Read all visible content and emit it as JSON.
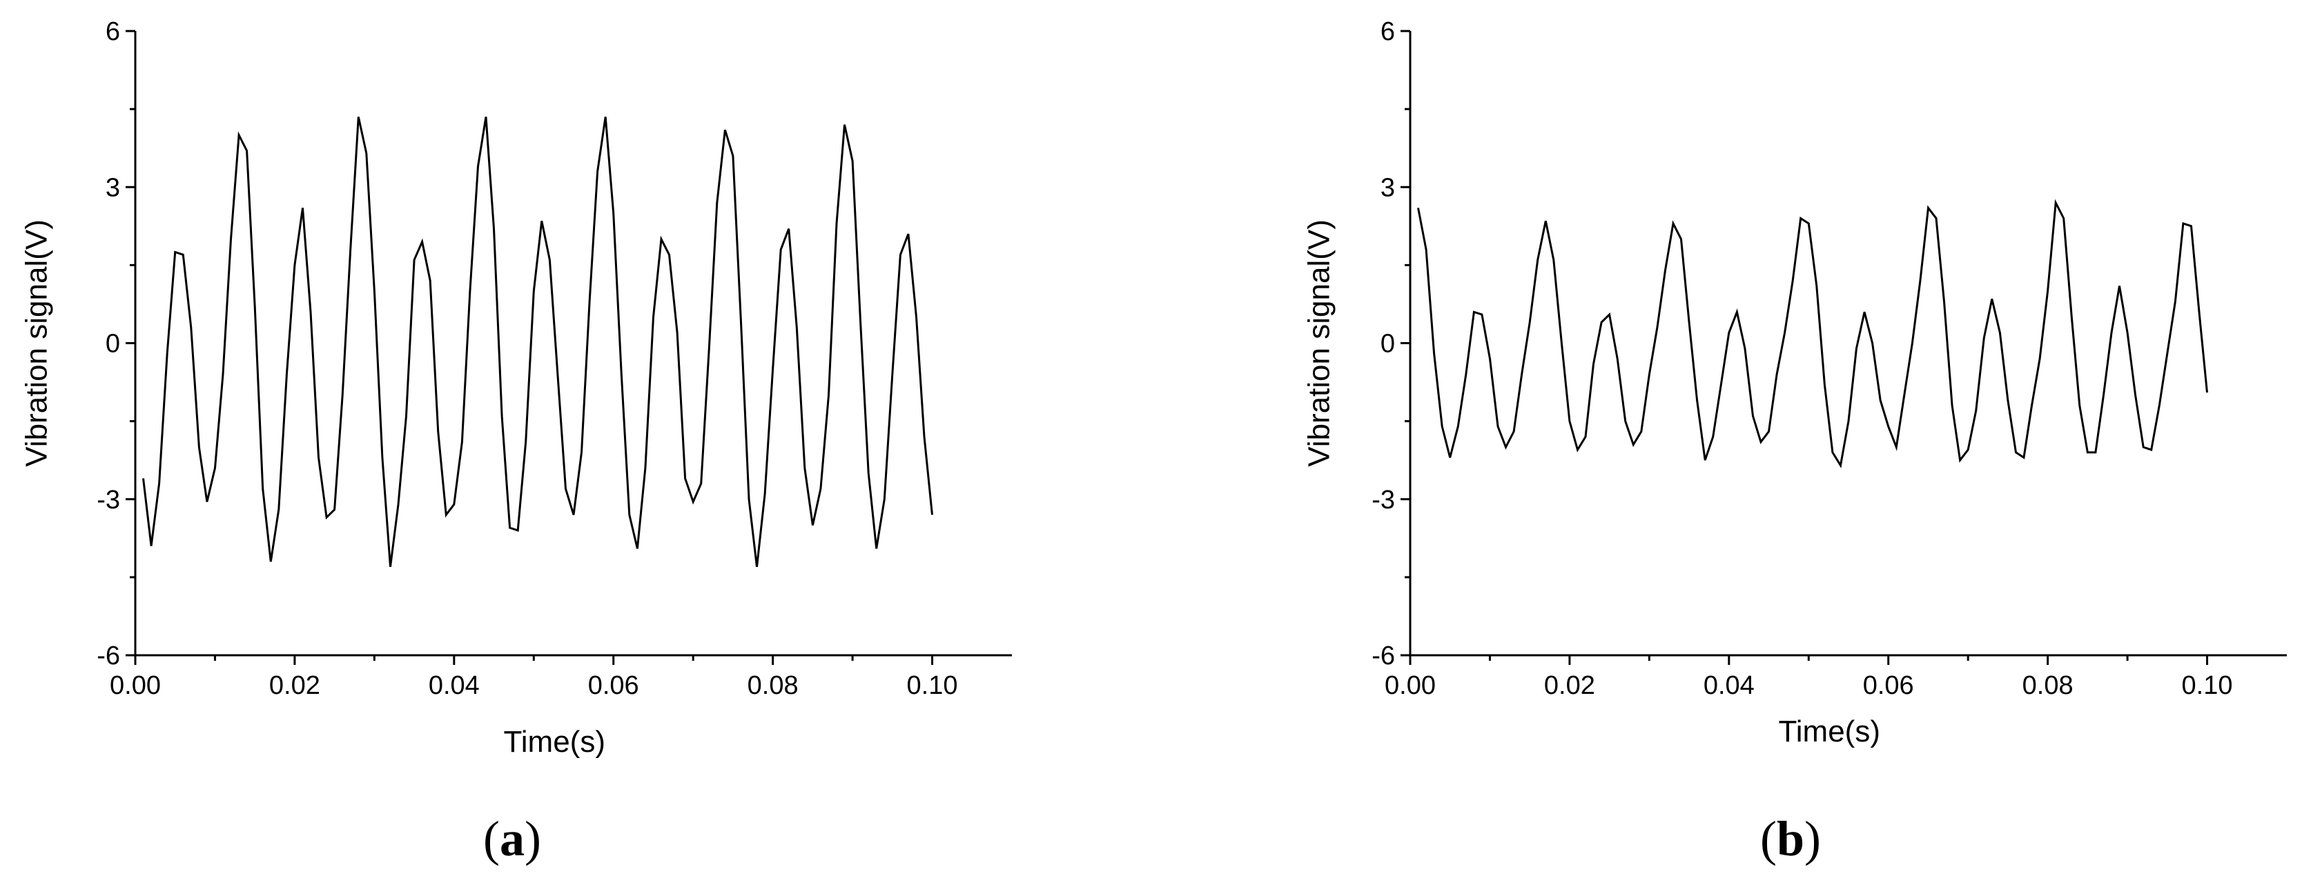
{
  "chart_data": [
    {
      "type": "line",
      "panel_label": "a",
      "title": "",
      "xlabel": "Time(s)",
      "ylabel": "Vibration signal(V)",
      "xlim": [
        0,
        0.11
      ],
      "ylim": [
        -6,
        6
      ],
      "xticks": [
        "0.00",
        "0.02",
        "0.04",
        "0.06",
        "0.08",
        "0.10"
      ],
      "yticks": [
        "6",
        "3",
        "0",
        "-3",
        "-6"
      ],
      "grid": false,
      "legend": "none",
      "line_color": "#000000",
      "series": [
        {
          "x": [
            0.001,
            0.002,
            0.003,
            0.004,
            0.005,
            0.006,
            0.007,
            0.008,
            0.009,
            0.01,
            0.011,
            0.012,
            0.013,
            0.014,
            0.015,
            0.016,
            0.017,
            0.018,
            0.019,
            0.02,
            0.021,
            0.022,
            0.023,
            0.024,
            0.025,
            0.026,
            0.027,
            0.028,
            0.029,
            0.03,
            0.031,
            0.032,
            0.033,
            0.034,
            0.035,
            0.036,
            0.037,
            0.038,
            0.039,
            0.04,
            0.041,
            0.042,
            0.043,
            0.044,
            0.045,
            0.046,
            0.047,
            0.048,
            0.049,
            0.05,
            0.051,
            0.052,
            0.053,
            0.054,
            0.055,
            0.056,
            0.057,
            0.058,
            0.059,
            0.06,
            0.061,
            0.062,
            0.063,
            0.064,
            0.065,
            0.066,
            0.067,
            0.068,
            0.069,
            0.07,
            0.071,
            0.072,
            0.073,
            0.074,
            0.075,
            0.076,
            0.077,
            0.078,
            0.079,
            0.08,
            0.081,
            0.082,
            0.083,
            0.084,
            0.085,
            0.086,
            0.087,
            0.088,
            0.089,
            0.09,
            0.091,
            0.092,
            0.093,
            0.094,
            0.095,
            0.096,
            0.097,
            0.098,
            0.099,
            0.1
          ],
          "values": [
            -2.6,
            -3.9,
            -2.7,
            -0.2,
            1.75,
            1.7,
            0.3,
            -2.0,
            -3.05,
            -2.4,
            -0.6,
            2.0,
            4.0,
            3.7,
            0.7,
            -2.8,
            -4.2,
            -3.2,
            -0.6,
            1.5,
            2.6,
            0.6,
            -2.2,
            -3.35,
            -3.2,
            -1.0,
            1.8,
            4.35,
            3.65,
            1.0,
            -2.2,
            -4.3,
            -3.1,
            -1.4,
            1.6,
            1.95,
            1.2,
            -1.7,
            -3.3,
            -3.1,
            -1.9,
            1.0,
            3.4,
            4.35,
            2.2,
            -1.4,
            -3.55,
            -3.6,
            -1.9,
            1.0,
            2.35,
            1.6,
            -0.6,
            -2.8,
            -3.3,
            -2.1,
            0.8,
            3.3,
            4.35,
            2.5,
            -0.6,
            -3.3,
            -3.95,
            -2.4,
            0.5,
            2.0,
            1.7,
            0.2,
            -2.6,
            -3.05,
            -2.7,
            -0.1,
            2.7,
            4.1,
            3.6,
            0.4,
            -3.0,
            -4.3,
            -2.9,
            -0.5,
            1.8,
            2.2,
            0.3,
            -2.4,
            -3.5,
            -2.8,
            -1.0,
            2.3,
            4.2,
            3.5,
            0.4,
            -2.5,
            -3.95,
            -3.0,
            -0.6,
            1.7,
            2.1,
            0.5,
            -1.8,
            -3.3
          ]
        }
      ]
    },
    {
      "type": "line",
      "panel_label": "b",
      "title": "",
      "xlabel": "Time(s)",
      "ylabel": "Vibration signal(V)",
      "xlim": [
        0,
        0.11
      ],
      "ylim": [
        -6,
        6
      ],
      "xticks": [
        "0.00",
        "0.02",
        "0.04",
        "0.06",
        "0.08",
        "0.10"
      ],
      "yticks": [
        "6",
        "3",
        "0",
        "-3",
        "-6"
      ],
      "grid": false,
      "legend": "none",
      "line_color": "#000000",
      "series": [
        {
          "x": [
            0.001,
            0.002,
            0.003,
            0.004,
            0.005,
            0.006,
            0.007,
            0.008,
            0.009,
            0.01,
            0.011,
            0.012,
            0.013,
            0.014,
            0.015,
            0.016,
            0.017,
            0.018,
            0.019,
            0.02,
            0.021,
            0.022,
            0.023,
            0.024,
            0.025,
            0.026,
            0.027,
            0.028,
            0.029,
            0.03,
            0.031,
            0.032,
            0.033,
            0.034,
            0.035,
            0.036,
            0.037,
            0.038,
            0.039,
            0.04,
            0.041,
            0.042,
            0.043,
            0.044,
            0.045,
            0.046,
            0.047,
            0.048,
            0.049,
            0.05,
            0.051,
            0.052,
            0.053,
            0.054,
            0.055,
            0.056,
            0.057,
            0.058,
            0.059,
            0.06,
            0.061,
            0.062,
            0.063,
            0.064,
            0.065,
            0.066,
            0.067,
            0.068,
            0.069,
            0.07,
            0.071,
            0.072,
            0.073,
            0.074,
            0.075,
            0.076,
            0.077,
            0.078,
            0.079,
            0.08,
            0.081,
            0.082,
            0.083,
            0.084,
            0.085,
            0.086,
            0.087,
            0.088,
            0.089,
            0.09,
            0.091,
            0.092,
            0.093,
            0.094,
            0.095,
            0.096,
            0.097,
            0.098,
            0.099,
            0.1
          ],
          "values": [
            2.6,
            1.8,
            -0.2,
            -1.6,
            -2.2,
            -1.6,
            -0.6,
            0.6,
            0.55,
            -0.3,
            -1.6,
            -2.0,
            -1.7,
            -0.6,
            0.4,
            1.6,
            2.35,
            1.6,
            0.0,
            -1.5,
            -2.05,
            -1.8,
            -0.4,
            0.4,
            0.55,
            -0.3,
            -1.5,
            -1.95,
            -1.7,
            -0.6,
            0.3,
            1.4,
            2.3,
            2.0,
            0.4,
            -1.1,
            -2.25,
            -1.8,
            -0.8,
            0.2,
            0.6,
            -0.1,
            -1.4,
            -1.9,
            -1.7,
            -0.6,
            0.2,
            1.2,
            2.4,
            2.3,
            1.1,
            -0.8,
            -2.1,
            -2.35,
            -1.5,
            -0.1,
            0.6,
            0.0,
            -1.1,
            -1.6,
            -2.0,
            -1.0,
            0.0,
            1.2,
            2.6,
            2.4,
            0.8,
            -1.2,
            -2.25,
            -2.05,
            -1.3,
            0.1,
            0.85,
            0.2,
            -1.1,
            -2.1,
            -2.2,
            -1.2,
            -0.3,
            1.0,
            2.7,
            2.4,
            0.5,
            -1.2,
            -2.1,
            -2.1,
            -1.0,
            0.2,
            1.1,
            0.2,
            -1.0,
            -2.0,
            -2.05,
            -1.2,
            -0.2,
            0.8,
            2.3,
            2.25,
            0.6,
            -0.95
          ]
        }
      ]
    }
  ]
}
